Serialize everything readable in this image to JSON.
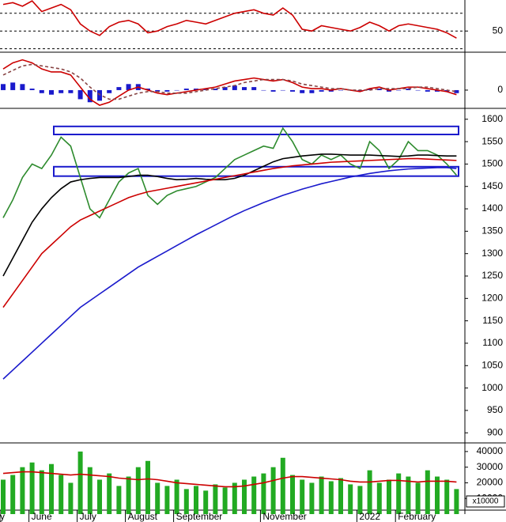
{
  "chart_data": [
    {
      "type": "line",
      "ylim": [
        27,
        85
      ],
      "yticks": [
        50
      ],
      "levels": [
        30,
        50,
        70
      ],
      "series": [
        {
          "type": "line",
          "color": "#cc0000",
          "values": [
            80,
            82,
            78,
            84,
            72,
            76,
            80,
            74,
            58,
            50,
            45,
            55,
            60,
            62,
            58,
            48,
            50,
            55,
            58,
            62,
            60,
            58,
            62,
            66,
            70,
            72,
            74,
            70,
            68,
            76,
            68,
            52,
            50,
            56,
            54,
            52,
            50,
            54,
            60,
            56,
            50,
            56,
            58,
            56,
            54,
            52,
            48,
            42
          ]
        }
      ]
    },
    {
      "type": "line",
      "ylim": [
        -11,
        24
      ],
      "yticks": [
        0
      ],
      "series": [
        {
          "type": "bar",
          "color": "#1a1acc",
          "values": [
            4,
            5,
            4,
            1,
            -2,
            -3,
            -2,
            -2,
            -6,
            -8,
            -7,
            -2,
            2,
            4,
            4,
            1,
            -1,
            -1,
            0,
            1,
            1,
            1,
            1,
            2,
            3,
            2,
            2,
            0,
            -1,
            0,
            -1,
            -2,
            -2,
            -1,
            -1,
            0,
            0,
            -1,
            1,
            1,
            -1,
            0,
            1,
            0,
            -1,
            -1,
            -1,
            -2
          ]
        },
        {
          "type": "line",
          "color": "#cc0000",
          "values": [
            14,
            18,
            20,
            18,
            14,
            12,
            12,
            10,
            2,
            -6,
            -10,
            -8,
            -4,
            0,
            2,
            0,
            -2,
            -3,
            -2,
            -1,
            0,
            1,
            2,
            4,
            6,
            7,
            8,
            7,
            6,
            7,
            5,
            2,
            1,
            1,
            0,
            1,
            0,
            -1,
            1,
            2,
            0,
            1,
            2,
            2,
            1,
            0,
            -1,
            -3
          ]
        },
        {
          "type": "line",
          "color": "#884444",
          "dashed": true,
          "values": [
            10,
            13,
            16,
            17,
            16,
            15,
            14,
            12,
            8,
            2,
            -3,
            -6,
            -6,
            -4,
            -2,
            -1,
            -1,
            -2,
            -2,
            -2,
            -1,
            0,
            1,
            2,
            3,
            5,
            6,
            7,
            7,
            7,
            6,
            4,
            3,
            2,
            1,
            1,
            0,
            0,
            0,
            1,
            1,
            1,
            1,
            2,
            2,
            1,
            0,
            -1
          ]
        }
      ]
    },
    {
      "type": "line",
      "ylim": [
        881,
        1619
      ],
      "yticks": [
        900,
        950,
        1000,
        1050,
        1100,
        1150,
        1200,
        1250,
        1300,
        1350,
        1400,
        1450,
        1500,
        1550,
        1600
      ],
      "bands": [
        [
          1566,
          1584
        ],
        [
          1473,
          1494
        ]
      ],
      "band_color": "#1a1acc",
      "series": [
        {
          "type": "line",
          "color": "#2e8b2e",
          "values": [
            1380,
            1420,
            1470,
            1500,
            1490,
            1520,
            1560,
            1540,
            1470,
            1400,
            1380,
            1420,
            1460,
            1480,
            1490,
            1430,
            1410,
            1430,
            1440,
            1445,
            1450,
            1460,
            1470,
            1490,
            1510,
            1520,
            1530,
            1540,
            1535,
            1580,
            1550,
            1510,
            1500,
            1520,
            1510,
            1520,
            1500,
            1490,
            1550,
            1530,
            1490,
            1510,
            1550,
            1530,
            1530,
            1520,
            1500,
            1475
          ]
        },
        {
          "type": "line",
          "color": "#000000",
          "values": [
            1250,
            1290,
            1330,
            1370,
            1400,
            1425,
            1445,
            1460,
            1465,
            1468,
            1470,
            1470,
            1470,
            1472,
            1475,
            1475,
            1472,
            1468,
            1465,
            1466,
            1468,
            1466,
            1465,
            1465,
            1468,
            1475,
            1485,
            1495,
            1505,
            1512,
            1515,
            1518,
            1520,
            1522,
            1522,
            1521,
            1520,
            1520,
            1520,
            1519,
            1518,
            1517,
            1518,
            1520,
            1520,
            1519,
            1518,
            1518
          ]
        },
        {
          "type": "line",
          "color": "#cc0000",
          "values": [
            1180,
            1210,
            1240,
            1270,
            1300,
            1320,
            1340,
            1360,
            1375,
            1385,
            1395,
            1405,
            1415,
            1425,
            1432,
            1438,
            1442,
            1446,
            1450,
            1454,
            1458,
            1462,
            1466,
            1470,
            1474,
            1478,
            1482,
            1486,
            1490,
            1493,
            1496,
            1498,
            1500,
            1502,
            1504,
            1505,
            1506,
            1507,
            1508,
            1509,
            1510,
            1511,
            1512,
            1512,
            1511,
            1510,
            1509,
            1508
          ]
        },
        {
          "type": "line",
          "color": "#1a1acc",
          "values": [
            1020,
            1040,
            1060,
            1080,
            1100,
            1120,
            1140,
            1160,
            1180,
            1195,
            1210,
            1225,
            1240,
            1255,
            1270,
            1282,
            1294,
            1306,
            1318,
            1330,
            1342,
            1353,
            1364,
            1375,
            1386,
            1396,
            1405,
            1414,
            1422,
            1430,
            1437,
            1444,
            1450,
            1456,
            1461,
            1466,
            1471,
            1475,
            1479,
            1482,
            1485,
            1487,
            1489,
            1490,
            1491,
            1492,
            1492,
            1490
          ]
        }
      ]
    },
    {
      "type": "bar",
      "ylim": [
        0,
        44500
      ],
      "yticks": [
        10000,
        20000,
        30000,
        40000
      ],
      "unit_label": "x10000",
      "categories": [
        "y",
        null,
        null,
        "June",
        null,
        null,
        null,
        null,
        "July",
        null,
        null,
        null,
        null,
        "August",
        null,
        null,
        null,
        null,
        "September",
        null,
        null,
        null,
        null,
        null,
        null,
        null,
        null,
        "November",
        null,
        null,
        null,
        null,
        null,
        null,
        null,
        null,
        null,
        "2022",
        null,
        null,
        null,
        "February",
        null,
        null,
        null,
        null,
        null,
        null
      ],
      "series": [
        {
          "type": "bar",
          "color": "#22aa22",
          "values": [
            22000,
            25000,
            30000,
            33000,
            28000,
            32000,
            25000,
            20000,
            40000,
            30000,
            22000,
            26000,
            18000,
            24000,
            30000,
            34000,
            20000,
            18000,
            22000,
            16000,
            18000,
            15000,
            19000,
            17000,
            20000,
            22000,
            24000,
            26000,
            30000,
            36000,
            25000,
            22000,
            20000,
            24000,
            21000,
            23000,
            19000,
            18000,
            28000,
            20000,
            22000,
            26000,
            24000,
            20000,
            28000,
            24000,
            22000,
            16000
          ]
        },
        {
          "type": "line",
          "color": "#cc0000",
          "values": [
            26000,
            26500,
            27000,
            27000,
            26500,
            26000,
            25500,
            25000,
            25500,
            25000,
            24500,
            24000,
            23000,
            22500,
            22000,
            22500,
            22000,
            21000,
            20000,
            19500,
            19000,
            18500,
            18000,
            17500,
            17500,
            18000,
            19000,
            20000,
            21500,
            23000,
            24000,
            24000,
            23500,
            23000,
            22500,
            22000,
            21000,
            20500,
            20500,
            21000,
            21500,
            21500,
            21000,
            20500,
            21000,
            21000,
            21000,
            20500
          ]
        }
      ]
    }
  ]
}
